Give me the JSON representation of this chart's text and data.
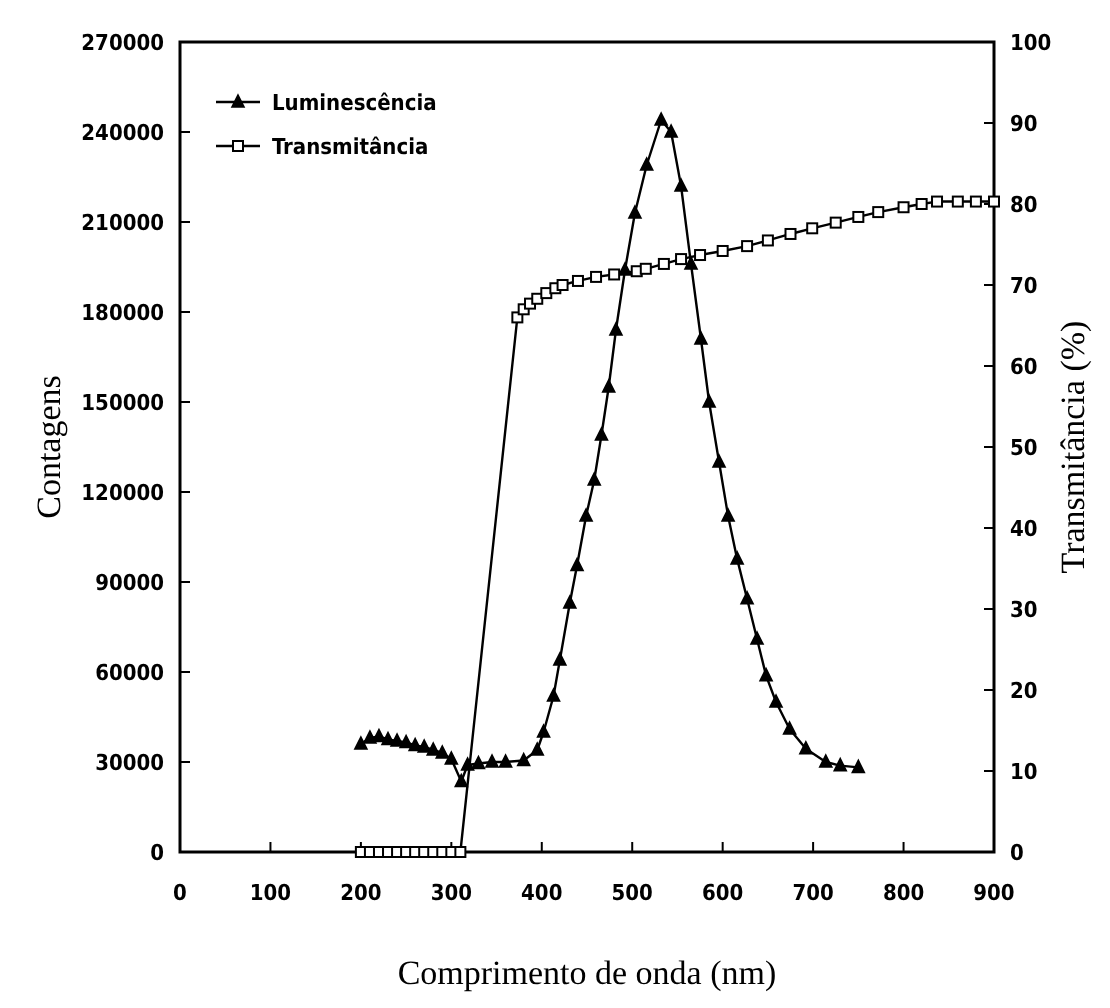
{
  "chart_data": {
    "type": "line",
    "xlabel": "Comprimento de onda (nm)",
    "ylabel": "Contagens",
    "y2label": "Transmitância (%)",
    "xlim": [
      0,
      900
    ],
    "xticks": [
      0,
      100,
      200,
      300,
      400,
      500,
      600,
      700,
      800,
      900
    ],
    "ylim": [
      0,
      270000
    ],
    "yticks": [
      0,
      30000,
      60000,
      90000,
      120000,
      150000,
      180000,
      210000,
      240000,
      270000
    ],
    "y2lim": [
      0,
      100
    ],
    "y2ticks": [
      0,
      10,
      20,
      30,
      40,
      50,
      60,
      70,
      80,
      90,
      100
    ],
    "legend": "top left",
    "grid": false,
    "line_style": "solid",
    "series": [
      {
        "name": "Luminescência",
        "color": "#000000",
        "marker": "triangle",
        "x": [
          200,
          210,
          220,
          230,
          240,
          250,
          260,
          270,
          280,
          290,
          300,
          311,
          318,
          330,
          345,
          360,
          380,
          395,
          402,
          413,
          420,
          431,
          439,
          449,
          458,
          466,
          474,
          482,
          492,
          503,
          516,
          532,
          543,
          554,
          565,
          576,
          585,
          596,
          606,
          616,
          627,
          638,
          648,
          659,
          674,
          692,
          714,
          730,
          750
        ],
        "values": [
          36000,
          38000,
          38500,
          37500,
          37000,
          36500,
          35500,
          35000,
          34000,
          33000,
          31000,
          23500,
          29000,
          29500,
          30000,
          30000,
          30500,
          34000,
          40000,
          52000,
          64000,
          83000,
          95500,
          112000,
          124000,
          139000,
          155000,
          174000,
          194000,
          213000,
          229000,
          244000,
          240000,
          222000,
          196000,
          171000,
          150000,
          130000,
          112000,
          97700,
          84400,
          71000,
          58800,
          50000,
          41000,
          34400,
          30000,
          28800,
          28200
        ]
      },
      {
        "name": "Transmitância",
        "color": "#000000",
        "marker": "square",
        "axis": "y2",
        "x": [
          200,
          210,
          220,
          230,
          240,
          250,
          260,
          270,
          280,
          290,
          300,
          310,
          373,
          380,
          387,
          395,
          405,
          415,
          423,
          440,
          460,
          480,
          505,
          515,
          535,
          554,
          575,
          600,
          627,
          650,
          675,
          699,
          725,
          750,
          772,
          800,
          820,
          837,
          860,
          880,
          900
        ],
        "values": [
          0,
          0,
          0,
          0,
          0,
          0,
          0,
          0,
          0,
          0,
          0,
          0,
          66,
          67,
          67.7,
          68.3,
          69,
          69.6,
          70,
          70.5,
          71,
          71.3,
          71.7,
          72,
          72.6,
          73.2,
          73.7,
          74.2,
          74.8,
          75.5,
          76.3,
          77,
          77.7,
          78.4,
          79,
          79.6,
          80,
          80.3,
          80.3,
          80.3,
          80.3
        ]
      }
    ]
  }
}
